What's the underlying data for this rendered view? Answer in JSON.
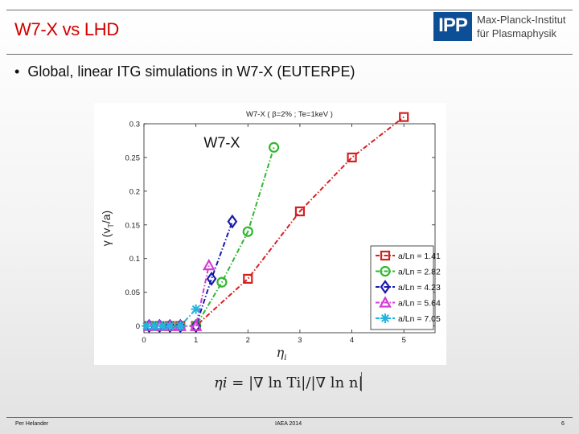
{
  "header": {
    "title": "W7-X vs LHD",
    "logo_text": "IPP",
    "institute_line1": "Max-Planck-Institut",
    "institute_line2": "für Plasmaphysik"
  },
  "bullet": {
    "marker": "•",
    "text": "Global, linear ITG simulations in W7-X (EUTERPE)"
  },
  "colors": {
    "title_red": "#d10000",
    "logo_blue": "#0d4f97"
  },
  "chart_data": {
    "type": "line",
    "title": "W7-X ( β=2% ; Te=1keV )",
    "annotation": "W7-X",
    "xlabel": "η_i",
    "ylabel": "γ (v_T/a)",
    "xlim": [
      0,
      5.6
    ],
    "ylim": [
      -0.01,
      0.3
    ],
    "xticks": [
      0,
      1,
      2,
      3,
      4,
      5
    ],
    "yticks": [
      0,
      0.05,
      0.1,
      0.15,
      0.2,
      0.25,
      0.3
    ],
    "grid": false,
    "legend_position": "bottom-right",
    "series": [
      {
        "name": "a/Ln = 1.41",
        "color": "#d62020",
        "marker": "square",
        "x": [
          0.1,
          0.3,
          0.5,
          0.7,
          1.0,
          2.0,
          3.0,
          4.0,
          5.0
        ],
        "y": [
          0,
          0,
          0,
          0,
          0,
          0.07,
          0.17,
          0.25,
          0.31
        ]
      },
      {
        "name": "a/Ln = 2.82",
        "color": "#2fb82f",
        "marker": "circle",
        "x": [
          0.1,
          0.3,
          0.5,
          0.7,
          1.0,
          1.5,
          2.0,
          2.5
        ],
        "y": [
          0,
          0,
          0,
          0,
          0,
          0.065,
          0.14,
          0.265
        ]
      },
      {
        "name": "a/Ln = 4.23",
        "color": "#1a1ab0",
        "marker": "diamond",
        "x": [
          0.1,
          0.3,
          0.5,
          0.7,
          1.0,
          1.3,
          1.7
        ],
        "y": [
          0,
          0,
          0,
          0,
          0,
          0.07,
          0.155
        ]
      },
      {
        "name": "a/Ln = 5.64",
        "color": "#d43bd4",
        "marker": "triangle",
        "x": [
          0.1,
          0.3,
          0.5,
          0.7,
          1.0,
          1.25
        ],
        "y": [
          0,
          0,
          0,
          0,
          0,
          0.09
        ]
      },
      {
        "name": "a/Ln = 7.05",
        "color": "#22b5e0",
        "marker": "star",
        "x": [
          0.05,
          0.2,
          0.35,
          0.5,
          0.7,
          1.0
        ],
        "y": [
          0,
          0,
          0,
          0,
          0,
          0.025
        ]
      }
    ]
  },
  "formula": {
    "lhs": "ηi",
    "eq": "=",
    "rhs_num": "|∇ ln Ti|",
    "slash": "/",
    "rhs_den": "|∇ ln n|"
  },
  "footer": {
    "author": "Per Helander",
    "conference": "IAEA 2014",
    "page": "6"
  }
}
